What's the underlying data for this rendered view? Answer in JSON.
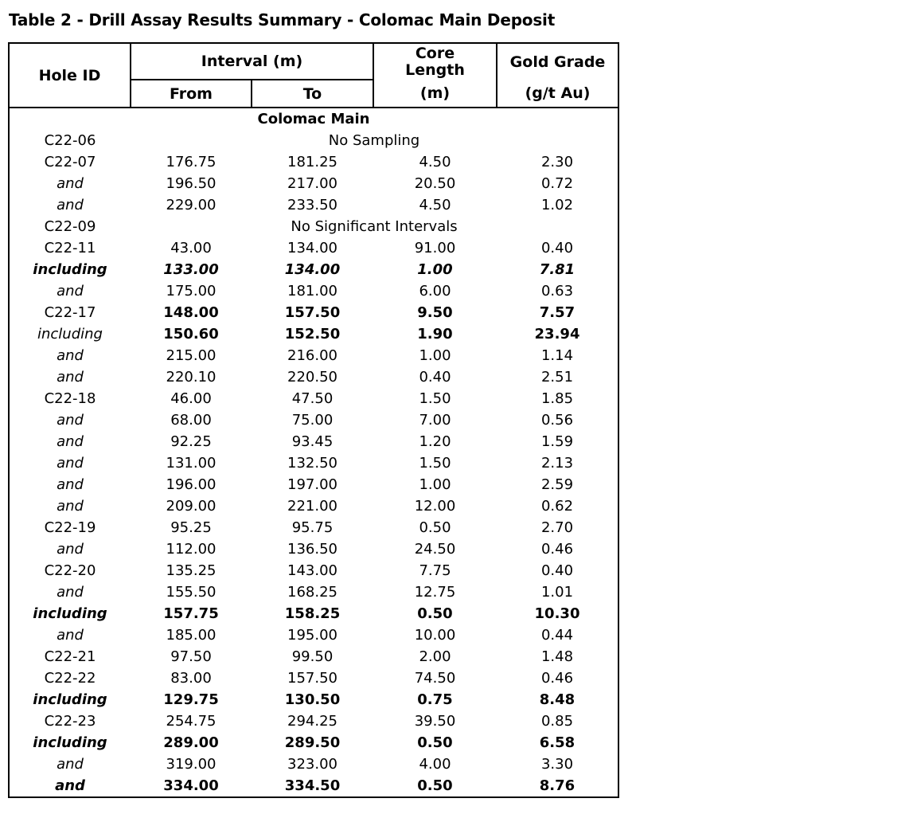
{
  "title": "Table 2 - Drill Assay Results Summary - Colomac Main Deposit",
  "colors": {
    "text": "#000000",
    "border": "#000000",
    "background": "#ffffff"
  },
  "table": {
    "headers": {
      "hole_id": "Hole ID",
      "interval": "Interval (m)",
      "from": "From",
      "to": "To",
      "core_length_lines": [
        "Core",
        "Length",
        "(m)"
      ],
      "gold_grade_lines": [
        "Gold Grade",
        "(g/t Au)"
      ]
    },
    "section_label": "Colomac Main",
    "rows": [
      {
        "hole": "C22-06",
        "note": "No Sampling",
        "label_style": "normal",
        "group_start": true
      },
      {
        "hole": "C22-07",
        "from": "176.75",
        "to": "181.25",
        "core": "4.50",
        "grade": "2.30",
        "label_style": "normal",
        "value_style": "normal",
        "group_start": true
      },
      {
        "hole": "and",
        "from": "196.50",
        "to": "217.00",
        "core": "20.50",
        "grade": "0.72",
        "label_style": "italic",
        "value_style": "normal",
        "group_start": false
      },
      {
        "hole": "and",
        "from": "229.00",
        "to": "233.50",
        "core": "4.50",
        "grade": "1.02",
        "label_style": "italic",
        "value_style": "normal",
        "group_start": false
      },
      {
        "hole": "C22-09",
        "note": "No Significant Intervals",
        "label_style": "normal",
        "group_start": true
      },
      {
        "hole": "C22-11",
        "from": "43.00",
        "to": "134.00",
        "core": "91.00",
        "grade": "0.40",
        "label_style": "normal",
        "value_style": "normal",
        "group_start": true
      },
      {
        "hole": "including",
        "from": "133.00",
        "to": "134.00",
        "core": "1.00",
        "grade": "7.81",
        "label_style": "bold-italic",
        "value_style": "bold-italic",
        "group_start": false
      },
      {
        "hole": "and",
        "from": "175.00",
        "to": "181.00",
        "core": "6.00",
        "grade": "0.63",
        "label_style": "italic",
        "value_style": "normal",
        "group_start": false
      },
      {
        "hole": "C22-17",
        "from": "148.00",
        "to": "157.50",
        "core": "9.50",
        "grade": "7.57",
        "label_style": "normal",
        "value_style": "bold",
        "group_start": true
      },
      {
        "hole": "including",
        "from": "150.60",
        "to": "152.50",
        "core": "1.90",
        "grade": "23.94",
        "label_style": "italic",
        "value_style": "bold",
        "group_start": false
      },
      {
        "hole": "and",
        "from": "215.00",
        "to": "216.00",
        "core": "1.00",
        "grade": "1.14",
        "label_style": "italic",
        "value_style": "normal",
        "group_start": false
      },
      {
        "hole": "and",
        "from": "220.10",
        "to": "220.50",
        "core": "0.40",
        "grade": "2.51",
        "label_style": "italic",
        "value_style": "normal",
        "group_start": false
      },
      {
        "hole": "C22-18",
        "from": "46.00",
        "to": "47.50",
        "core": "1.50",
        "grade": "1.85",
        "label_style": "normal",
        "value_style": "normal",
        "group_start": true
      },
      {
        "hole": "and",
        "from": "68.00",
        "to": "75.00",
        "core": "7.00",
        "grade": "0.56",
        "label_style": "italic",
        "value_style": "normal",
        "group_start": false
      },
      {
        "hole": "and",
        "from": "92.25",
        "to": "93.45",
        "core": "1.20",
        "grade": "1.59",
        "label_style": "italic",
        "value_style": "normal",
        "group_start": false
      },
      {
        "hole": "and",
        "from": "131.00",
        "to": "132.50",
        "core": "1.50",
        "grade": "2.13",
        "label_style": "italic",
        "value_style": "normal",
        "group_start": false
      },
      {
        "hole": "and",
        "from": "196.00",
        "to": "197.00",
        "core": "1.00",
        "grade": "2.59",
        "label_style": "italic",
        "value_style": "normal",
        "group_start": false
      },
      {
        "hole": "and",
        "from": "209.00",
        "to": "221.00",
        "core": "12.00",
        "grade": "0.62",
        "label_style": "italic",
        "value_style": "normal",
        "group_start": false
      },
      {
        "hole": "C22-19",
        "from": "95.25",
        "to": "95.75",
        "core": "0.50",
        "grade": "2.70",
        "label_style": "normal",
        "value_style": "normal",
        "group_start": true
      },
      {
        "hole": "and",
        "from": "112.00",
        "to": "136.50",
        "core": "24.50",
        "grade": "0.46",
        "label_style": "italic",
        "value_style": "normal",
        "group_start": false
      },
      {
        "hole": "C22-20",
        "from": "135.25",
        "to": "143.00",
        "core": "7.75",
        "grade": "0.40",
        "label_style": "normal",
        "value_style": "normal",
        "group_start": true
      },
      {
        "hole": "and",
        "from": "155.50",
        "to": "168.25",
        "core": "12.75",
        "grade": "1.01",
        "label_style": "italic",
        "value_style": "normal",
        "group_start": false
      },
      {
        "hole": "including",
        "from": "157.75",
        "to": "158.25",
        "core": "0.50",
        "grade": "10.30",
        "label_style": "bold-italic",
        "value_style": "bold",
        "group_start": false
      },
      {
        "hole": "and",
        "from": "185.00",
        "to": "195.00",
        "core": "10.00",
        "grade": "0.44",
        "label_style": "italic",
        "value_style": "normal",
        "group_start": false
      },
      {
        "hole": "C22-21",
        "from": "97.50",
        "to": "99.50",
        "core": "2.00",
        "grade": "1.48",
        "label_style": "normal",
        "value_style": "normal",
        "group_start": true
      },
      {
        "hole": "C22-22",
        "from": "83.00",
        "to": "157.50",
        "core": "74.50",
        "grade": "0.46",
        "label_style": "normal",
        "value_style": "normal",
        "group_start": true
      },
      {
        "hole": "including",
        "from": "129.75",
        "to": "130.50",
        "core": "0.75",
        "grade": "8.48",
        "label_style": "bold-italic",
        "value_style": "bold",
        "group_start": false
      },
      {
        "hole": "C22-23",
        "from": "254.75",
        "to": "294.25",
        "core": "39.50",
        "grade": "0.85",
        "label_style": "normal",
        "value_style": "normal",
        "group_start": true
      },
      {
        "hole": "including",
        "from": "289.00",
        "to": "289.50",
        "core": "0.50",
        "grade": "6.58",
        "label_style": "bold-italic",
        "value_style": "bold",
        "group_start": false
      },
      {
        "hole": "and",
        "from": "319.00",
        "to": "323.00",
        "core": "4.00",
        "grade": "3.30",
        "label_style": "italic",
        "value_style": "normal",
        "group_start": false
      },
      {
        "hole": "and",
        "from": "334.00",
        "to": "334.50",
        "core": "0.50",
        "grade": "8.76",
        "label_style": "bold-italic",
        "value_style": "bold",
        "group_start": false
      }
    ]
  }
}
